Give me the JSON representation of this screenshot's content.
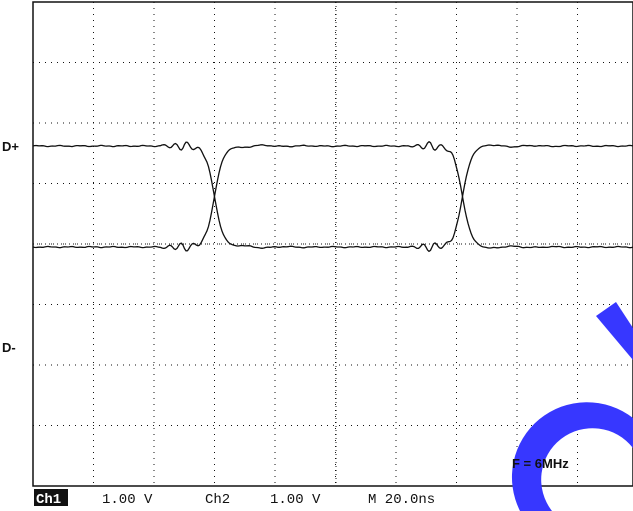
{
  "chart_data": {
    "type": "line",
    "xlabel": "",
    "ylabel": "",
    "grid": true,
    "time_per_div_ns": 20,
    "volts_per_div": 1.0,
    "channel_labels": [
      "D+",
      "D-"
    ],
    "annotation": "F = 6MHz",
    "status_bar": {
      "ch1_label": "Ch1",
      "ch1_scale": "1.00 V",
      "ch2_label": "Ch2",
      "ch2_scale": "1.00 V",
      "timebase": "M 20.0ns"
    },
    "transitions_ns": [
      60,
      142
    ],
    "series": [
      {
        "high_divs": 0,
        "low_divs": -1.67,
        "starts": "high"
      },
      {
        "high_divs": 0,
        "low_divs": -1.67,
        "starts": "low"
      }
    ]
  },
  "watermark_color": "#3737ff"
}
